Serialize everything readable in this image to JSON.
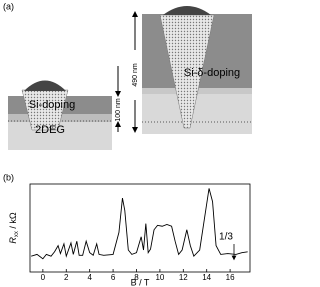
{
  "panel_a": {
    "label": "(a)",
    "left_layer": "Si-doping",
    "left_thickness": "100 nm",
    "left_bottom": "2DEG",
    "right_thickness": "490 nm",
    "right_layer": "Si-δ-doping"
  },
  "chart_data": {
    "type": "line",
    "label": "(b)",
    "x_label": "B / T",
    "y_label": {
      "symbol": "R",
      "subscript": "xx",
      "unit": " / kΩ"
    },
    "annotation": "1/3",
    "xlim": [
      -1.1,
      17.7
    ],
    "xticks": [
      0,
      2,
      4,
      6,
      8,
      10,
      12,
      14,
      16
    ],
    "ylim": [
      0,
      10
    ],
    "series": [
      {
        "color": "#000000",
        "x": [
          -1,
          -0.5,
          -0.2,
          0,
          0.3,
          0.7,
          1.0,
          1.3,
          1.5,
          1.8,
          2.0,
          2.4,
          2.6,
          2.9,
          3.1,
          3.4,
          3.7,
          4.0,
          4.3,
          4.6,
          4.8,
          5.2,
          6.0,
          6.5,
          6.8,
          7.0,
          7.3,
          7.6,
          8.0,
          8.4,
          8.6,
          8.8,
          9.0,
          9.2,
          9.5,
          9.8,
          10.2,
          10.6,
          11.0,
          11.3,
          11.6,
          11.9,
          12.3,
          12.6,
          12.9,
          13.4,
          13.8,
          14.2,
          14.5,
          14.8,
          15.2,
          15.8,
          16.5,
          17.0,
          17.5
        ],
        "values": [
          1.8,
          2.0,
          1.7,
          1.5,
          2.0,
          1.8,
          2.3,
          3.0,
          2.1,
          3.2,
          1.8,
          3.3,
          2.0,
          3.5,
          1.9,
          1.9,
          3.5,
          2.2,
          1.9,
          3.2,
          2.0,
          1.9,
          2.0,
          4.5,
          8.4,
          7.0,
          2.5,
          2.0,
          2.2,
          4.0,
          2.5,
          5.5,
          2.2,
          2.6,
          4.8,
          5.3,
          5.2,
          5.4,
          5.2,
          3.5,
          2.0,
          2.5,
          4.8,
          3.0,
          1.8,
          2.5,
          6.0,
          9.5,
          8.0,
          3.0,
          2.0,
          2.1,
          2.0,
          2.2,
          2.3
        ]
      }
    ]
  }
}
